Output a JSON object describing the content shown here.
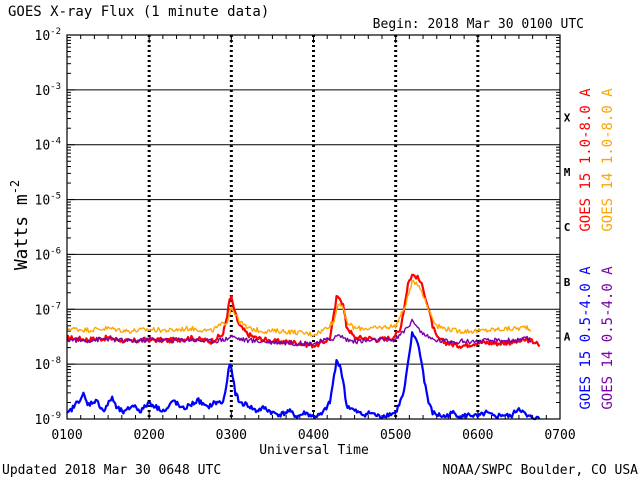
{
  "chart_data": {
    "type": "line",
    "title": "GOES X-ray Flux (1 minute data)",
    "begin_label": "Begin: 2018 Mar 30 0100 UTC",
    "xlabel": "Universal Time",
    "ylabel": "Watts m",
    "ylabel_superscript": "-2",
    "footer_left": "Updated 2018 Mar 30 0648 UTC",
    "footer_right": "NOAA/SWPC Boulder, CO USA",
    "y_scale": "log",
    "ylim": [
      1e-09,
      0.01
    ],
    "xlim_hours": [
      1.0,
      7.0
    ],
    "x_ticks": [
      {
        "hour": 1,
        "label": "0100"
      },
      {
        "hour": 2,
        "label": "0200"
      },
      {
        "hour": 3,
        "label": "0300"
      },
      {
        "hour": 4,
        "label": "0400"
      },
      {
        "hour": 5,
        "label": "0500"
      },
      {
        "hour": 6,
        "label": "0600"
      },
      {
        "hour": 7,
        "label": "0700"
      }
    ],
    "y_ticks": [
      {
        "exp": -9,
        "label": "10",
        "sup": "-9"
      },
      {
        "exp": -8,
        "label": "10",
        "sup": "-8"
      },
      {
        "exp": -7,
        "label": "10",
        "sup": "-7"
      },
      {
        "exp": -6,
        "label": "10",
        "sup": "-6"
      },
      {
        "exp": -5,
        "label": "10",
        "sup": "-5"
      },
      {
        "exp": -4,
        "label": "10",
        "sup": "-4"
      },
      {
        "exp": -3,
        "label": "10",
        "sup": "-3"
      },
      {
        "exp": -2,
        "label": "10",
        "sup": "-2"
      }
    ],
    "flare_classes": [
      {
        "label": "A",
        "exp": -7.5
      },
      {
        "label": "B",
        "exp": -6.5
      },
      {
        "label": "C",
        "exp": -5.5
      },
      {
        "label": "M",
        "exp": -4.5
      },
      {
        "label": "X",
        "exp": -3.5
      }
    ],
    "series": [
      {
        "name": "GOES 15 1.0-8.0 A",
        "color": "#ff0000",
        "x": [
          1.0,
          1.25,
          1.5,
          1.75,
          2.0,
          2.25,
          2.5,
          2.75,
          2.9,
          2.95,
          2.98,
          3.0,
          3.05,
          3.1,
          3.2,
          3.3,
          3.4,
          3.5,
          3.75,
          3.9,
          4.0,
          4.1,
          4.2,
          4.25,
          4.28,
          4.32,
          4.36,
          4.4,
          4.5,
          4.65,
          4.8,
          4.95,
          5.05,
          5.1,
          5.15,
          5.2,
          5.25,
          5.3,
          5.35,
          5.4,
          5.45,
          5.5,
          5.6,
          5.75,
          5.85,
          6.0,
          6.25,
          6.5,
          6.6,
          6.7,
          6.75
        ],
        "y": [
          3e-08,
          2.8e-08,
          3e-08,
          2.6e-08,
          2.8e-08,
          2.7e-08,
          3e-08,
          2.6e-08,
          3.5e-08,
          8e-08,
          1.5e-07,
          1.6e-07,
          8e-08,
          5e-08,
          3.5e-08,
          3e-08,
          2.8e-08,
          2.6e-08,
          2.5e-08,
          2.3e-08,
          2.2e-08,
          2.4e-08,
          3e-08,
          8e-08,
          1.6e-07,
          1.7e-07,
          1.2e-07,
          5e-08,
          3e-08,
          3e-08,
          2.8e-08,
          3e-08,
          4e-08,
          1e-07,
          3e-07,
          4.2e-07,
          4e-07,
          3.2e-07,
          2e-07,
          1e-07,
          5e-08,
          3e-08,
          2.5e-08,
          2.2e-08,
          2.2e-08,
          2.5e-08,
          2.4e-08,
          2.6e-08,
          2.8e-08,
          2.5e-08,
          2.1e-08
        ]
      },
      {
        "name": "GOES 14 1.0-8.0 A",
        "color": "#ffa500",
        "x": [
          1.0,
          1.25,
          1.5,
          1.75,
          2.0,
          2.25,
          2.5,
          2.75,
          2.95,
          3.0,
          3.1,
          3.2,
          3.4,
          3.6,
          3.8,
          4.0,
          4.1,
          4.25,
          4.3,
          4.35,
          4.4,
          4.5,
          4.75,
          5.0,
          5.1,
          5.2,
          5.25,
          5.3,
          5.4,
          5.5,
          5.6,
          5.75,
          6.0,
          6.25,
          6.5,
          6.6,
          6.65
        ],
        "y": [
          4.5e-08,
          4.2e-08,
          4.5e-08,
          4e-08,
          4.3e-08,
          4.1e-08,
          4.5e-08,
          4e-08,
          6e-08,
          1.1e-07,
          6e-08,
          4.5e-08,
          4e-08,
          4e-08,
          3.8e-08,
          3.5e-08,
          4e-08,
          6e-08,
          1.3e-07,
          1.2e-07,
          6e-08,
          4.5e-08,
          4.5e-08,
          5e-08,
          1e-07,
          3e-07,
          3.2e-07,
          2.5e-07,
          1e-07,
          5e-08,
          4.5e-08,
          4e-08,
          4e-08,
          4.3e-08,
          4.5e-08,
          4.8e-08,
          4e-08
        ]
      },
      {
        "name": "GOES 15 0.5-4.0 A",
        "color": "#0000ff",
        "x": [
          1.0,
          1.1,
          1.2,
          1.25,
          1.35,
          1.45,
          1.55,
          1.6,
          1.7,
          1.8,
          1.9,
          2.0,
          2.1,
          2.2,
          2.3,
          2.4,
          2.5,
          2.6,
          2.7,
          2.8,
          2.9,
          2.95,
          2.98,
          3.0,
          3.05,
          3.1,
          3.2,
          3.3,
          3.4,
          3.5,
          3.6,
          3.7,
          3.8,
          3.9,
          4.0,
          4.1,
          4.2,
          4.25,
          4.28,
          4.32,
          4.36,
          4.4,
          4.5,
          4.6,
          4.7,
          4.8,
          4.9,
          5.0,
          5.1,
          5.15,
          5.2,
          5.25,
          5.3,
          5.35,
          5.4,
          5.45,
          5.5,
          5.6,
          5.7,
          5.8,
          5.9,
          6.0,
          6.1,
          6.2,
          6.3,
          6.4,
          6.5,
          6.6,
          6.7,
          6.75
        ],
        "y": [
          1.2e-09,
          1.8e-09,
          2.8e-09,
          1.8e-09,
          2.2e-09,
          1.4e-09,
          2.5e-09,
          1.6e-09,
          1.3e-09,
          1.8e-09,
          1.4e-09,
          2e-09,
          1.6e-09,
          1.4e-09,
          2.2e-09,
          1.5e-09,
          1.8e-09,
          2.2e-09,
          1.6e-09,
          2e-09,
          2e-09,
          5e-09,
          1.05e-08,
          8e-09,
          3e-09,
          2e-09,
          1.8e-09,
          1.4e-09,
          1.6e-09,
          1.3e-09,
          1.2e-09,
          1.4e-09,
          1.1e-09,
          1.3e-09,
          1.1e-09,
          1.2e-09,
          2e-09,
          6e-09,
          1.1e-08,
          1e-08,
          5e-09,
          1.8e-09,
          1.4e-09,
          1.2e-09,
          1.3e-09,
          1.1e-09,
          1.2e-09,
          1.3e-09,
          3e-09,
          1e-08,
          3.5e-08,
          3e-08,
          1.5e-08,
          5e-09,
          2e-09,
          1.3e-09,
          1.2e-09,
          1.1e-09,
          1.3e-09,
          1.1e-09,
          1.2e-09,
          1.1e-09,
          1.3e-09,
          1.1e-09,
          1.2e-09,
          1.1e-09,
          1.6e-09,
          1.1e-09,
          1.05e-09,
          1e-09
        ]
      },
      {
        "name": "GOES 14 0.5-4.0 A",
        "color": "#7a00a8",
        "x": [
          1.0,
          1.25,
          1.5,
          1.75,
          2.0,
          2.25,
          2.5,
          2.75,
          2.95,
          3.0,
          3.05,
          3.2,
          3.4,
          3.6,
          3.8,
          4.0,
          4.1,
          4.25,
          4.3,
          4.35,
          4.4,
          4.5,
          4.75,
          5.0,
          5.1,
          5.2,
          5.25,
          5.3,
          5.4,
          5.5,
          5.75,
          6.0,
          6.25,
          6.5,
          6.6,
          6.65
        ],
        "y": [
          2.8e-08,
          2.7e-08,
          2.9e-08,
          2.6e-08,
          2.8e-08,
          2.7e-08,
          2.8e-08,
          2.6e-08,
          2.9e-08,
          3.3e-08,
          3e-08,
          2.7e-08,
          2.6e-08,
          2.5e-08,
          2.4e-08,
          2.4e-08,
          2.6e-08,
          3e-08,
          3.3e-08,
          3.2e-08,
          2.8e-08,
          2.6e-08,
          2.7e-08,
          2.8e-08,
          4e-08,
          6e-08,
          5.5e-08,
          4e-08,
          3e-08,
          2.7e-08,
          2.6e-08,
          2.6e-08,
          2.7e-08,
          2.7e-08,
          2.9e-08,
          2.6e-08
        ]
      }
    ]
  }
}
